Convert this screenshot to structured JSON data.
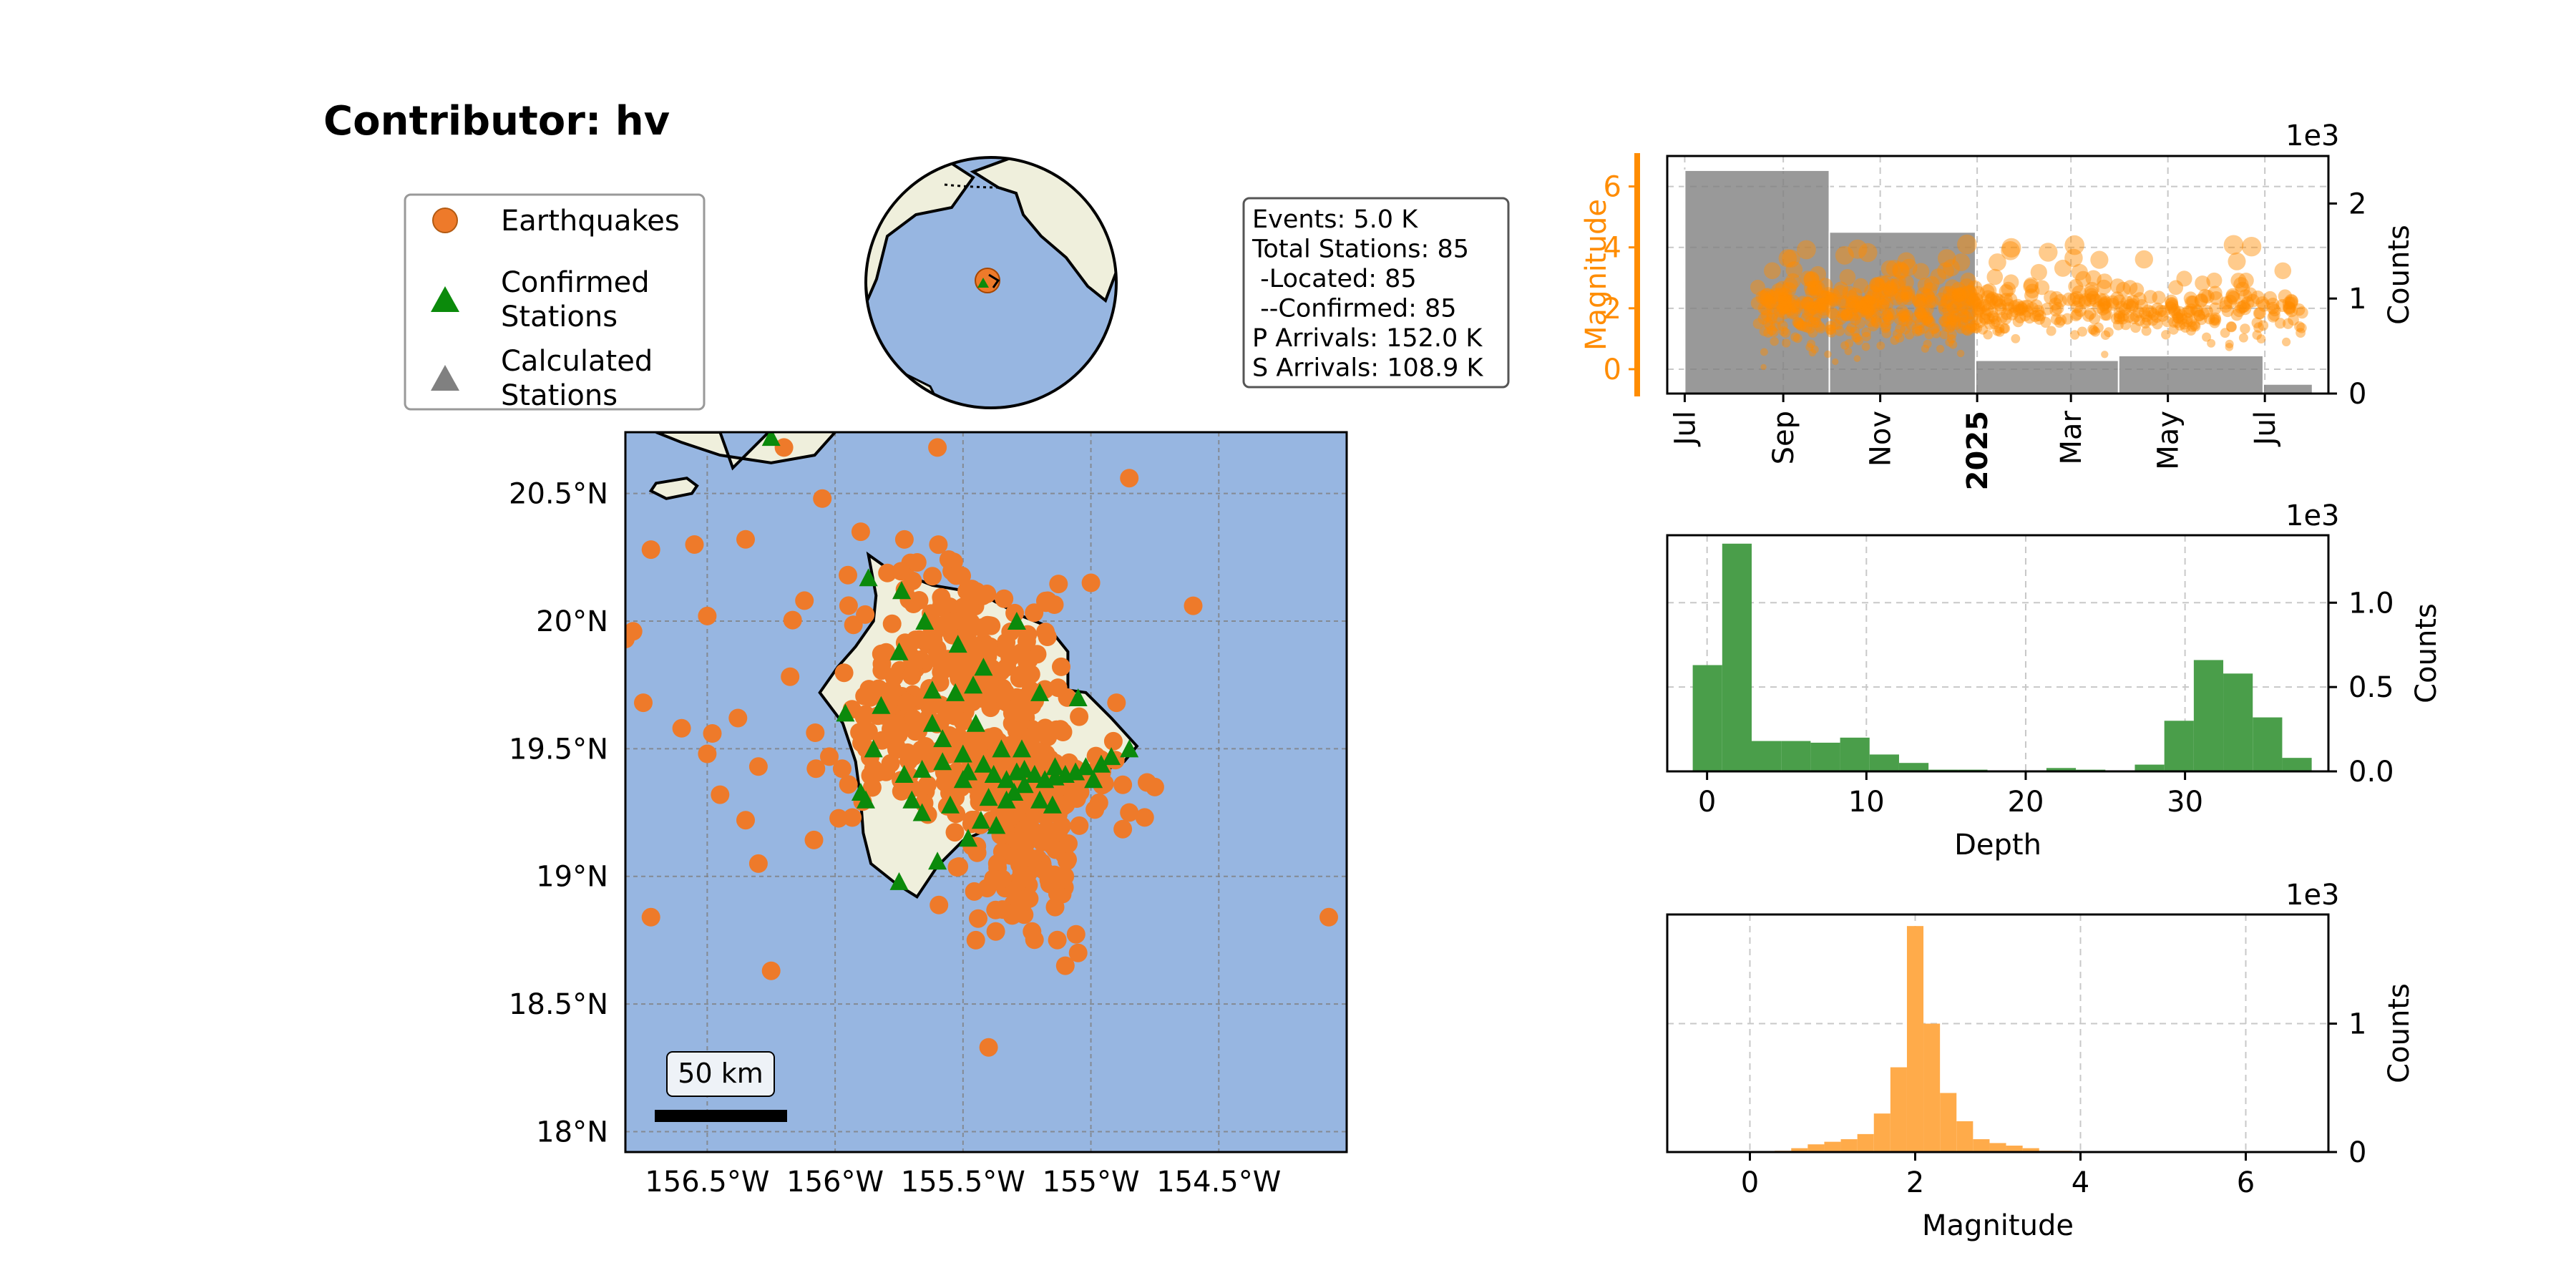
{
  "figure": {
    "title": "Contributor: hv"
  },
  "legend": {
    "items": [
      {
        "label_lines": [
          "Earthquakes"
        ],
        "marker": "circle",
        "color": "#ee7a2a"
      },
      {
        "label_lines": [
          "Confirmed",
          "Stations"
        ],
        "marker": "triangle",
        "color": "#0b8a0b"
      },
      {
        "label_lines": [
          "Calculated",
          "Stations"
        ],
        "marker": "triangle",
        "color": "#808080"
      }
    ]
  },
  "stats_box": {
    "lines": [
      "Events: 5.0 K",
      "Total Stations: 85",
      " -Located: 85",
      " --Confirmed: 85",
      "P Arrivals: 152.0 K",
      "S Arrivals: 108.9 K"
    ]
  },
  "map": {
    "lon_ticks": [
      {
        "value": -156.5,
        "label": "156.5°W"
      },
      {
        "value": -156.0,
        "label": "156°W"
      },
      {
        "value": -155.5,
        "label": "155.5°W"
      },
      {
        "value": -155.0,
        "label": "155°W"
      },
      {
        "value": -154.5,
        "label": "154.5°W"
      }
    ],
    "lat_ticks": [
      {
        "value": 18.0,
        "label": "18°N"
      },
      {
        "value": 18.5,
        "label": "18.5°N"
      },
      {
        "value": 19.0,
        "label": "19°N"
      },
      {
        "value": 19.5,
        "label": "19.5°N"
      },
      {
        "value": 20.0,
        "label": "20°N"
      },
      {
        "value": 20.5,
        "label": "20.5°N"
      }
    ],
    "lon_range": [
      -156.82,
      -154.0
    ],
    "lat_range": [
      17.92,
      20.74
    ],
    "scale_bar_label": "50 km",
    "ocean_color": "#97b6e1",
    "land_color": "#efefdc",
    "event_color": "#ee7a2a",
    "station_color": "#0b8a0b"
  },
  "chart_data": [
    {
      "type": "scatter",
      "name": "time-magnitude",
      "ylabel": "Magnitude",
      "y2label": "Counts",
      "y2_multiplier": "1e3",
      "ylim": [
        -0.8,
        7.0
      ],
      "y2lim": [
        0,
        2.5
      ],
      "yticks": [
        0,
        2,
        4,
        6
      ],
      "y2ticks": [
        0,
        1,
        2
      ],
      "xticks": [
        {
          "label": "Jul",
          "bold": false
        },
        {
          "label": "Sep",
          "bold": false
        },
        {
          "label": "Nov",
          "bold": false
        },
        {
          "label": "2025",
          "bold": true
        },
        {
          "label": "Mar",
          "bold": false
        },
        {
          "label": "May",
          "bold": false
        },
        {
          "label": "Jul",
          "bold": false
        }
      ],
      "bins": [
        {
          "start": "2024-07-01",
          "end": "2024-09-30",
          "count": 2.35
        },
        {
          "start": "2024-09-30",
          "end": "2024-12-31",
          "count": 1.7
        },
        {
          "start": "2024-12-31",
          "end": "2025-03-31",
          "count": 0.35
        },
        {
          "start": "2025-03-31",
          "end": "2025-06-30",
          "count": 0.4
        },
        {
          "start": "2025-06-30",
          "end": "2025-07-31",
          "count": 0.1
        }
      ],
      "scatter_color": "#ff8c00",
      "bar_color": "#7f7f7f"
    },
    {
      "type": "bar",
      "name": "depth-histogram",
      "xlabel": "Depth",
      "ylabel": "Counts",
      "y_multiplier": "1e3",
      "xlim": [
        -2.5,
        39.0
      ],
      "ylim": [
        0,
        1.4
      ],
      "xticks": [
        0,
        10,
        20,
        30
      ],
      "yticks": [
        {
          "value": 0.0,
          "label": "0.0"
        },
        {
          "value": 0.5,
          "label": "0.5"
        },
        {
          "value": 1.0,
          "label": "1.0"
        }
      ],
      "bin_width": 1.85,
      "bin_start": -0.9,
      "counts": [
        0.63,
        1.35,
        0.18,
        0.18,
        0.17,
        0.2,
        0.1,
        0.05,
        0.01,
        0.01,
        0.0,
        0.0,
        0.02,
        0.01,
        0.0,
        0.04,
        0.3,
        0.66,
        0.58,
        0.32,
        0.08
      ],
      "color": "#4a9e4a"
    },
    {
      "type": "bar",
      "name": "magnitude-histogram",
      "xlabel": "Magnitude",
      "ylabel": "Counts",
      "y_multiplier": "1e3",
      "xlim": [
        -1.0,
        7.0
      ],
      "ylim": [
        0,
        1.85
      ],
      "xticks": [
        0,
        2,
        4,
        6
      ],
      "yticks": [
        {
          "value": 0,
          "label": "0"
        },
        {
          "value": 1,
          "label": "1"
        }
      ],
      "bin_width": 0.2,
      "bin_start": 0.3,
      "counts": [
        0.01,
        0.03,
        0.06,
        0.08,
        0.1,
        0.14,
        0.3,
        0.66,
        1.76,
        1.0,
        0.46,
        0.24,
        0.1,
        0.07,
        0.05,
        0.03,
        0.01,
        0.01
      ],
      "color": "#ffab4a"
    }
  ]
}
